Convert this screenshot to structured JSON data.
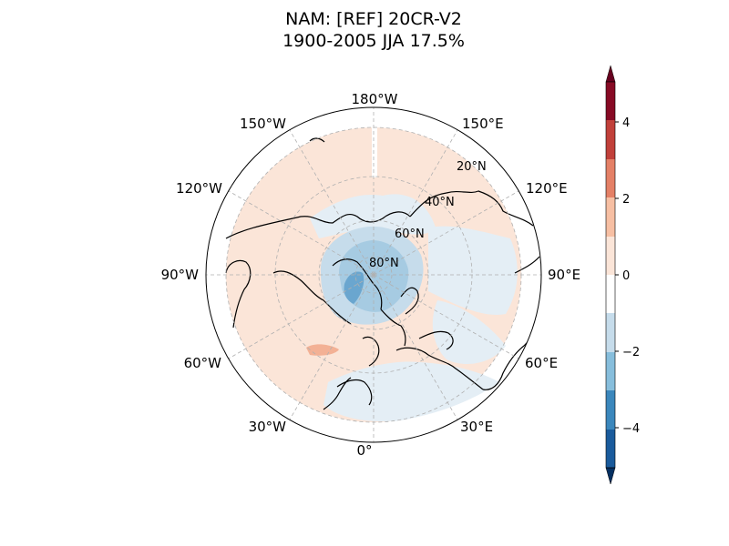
{
  "title": {
    "line1": "NAM: [REF] 20CR-V2",
    "line2": "1900-2005 JJA 17.5%"
  },
  "map": {
    "projection": "north-polar-stereographic",
    "longitude_labels": [
      "180°W",
      "150°E",
      "120°E",
      "90°E",
      "60°E",
      "30°E",
      "0°",
      "30°W",
      "60°W",
      "90°W",
      "120°W",
      "150°W"
    ],
    "latitude_labels": [
      "20°N",
      "40°N",
      "60°N",
      "80°N"
    ],
    "field_description": "regression pattern, weak positive values over most of hemisphere, negative values over Arctic/Greenland"
  },
  "colorbar": {
    "tick_labels": [
      "4",
      "2",
      "0",
      "−2",
      "−4"
    ],
    "range": [
      -5,
      5
    ],
    "extend": "both",
    "colors": {
      "max_arrow": "#67001f",
      "c4_5": "#870a24",
      "c3_4": "#c1403a",
      "c2_3": "#e48066",
      "c1_2": "#f7bfa3",
      "c0_1": "#fbe5d8",
      "c-1_0": "#ffffff",
      "c-2_-1": "#c6dceb",
      "c-3_-2": "#87bedc",
      "c-4_-3": "#3b87bc",
      "c-5_-4": "#1a5b9c",
      "min_arrow": "#053061"
    }
  }
}
